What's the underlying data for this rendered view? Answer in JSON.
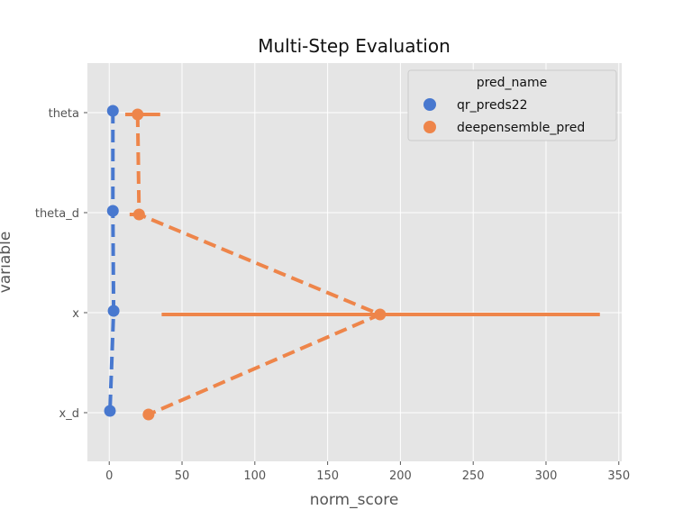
{
  "chart_data": {
    "type": "pointplot",
    "title": "Multi-Step Evaluation",
    "xlabel": "norm_score",
    "ylabel": "variable",
    "categories": [
      "theta",
      "theta_d",
      "x",
      "x_d"
    ],
    "xlim": [
      -15,
      352
    ],
    "xticks": [
      0,
      50,
      100,
      150,
      200,
      250,
      300,
      350
    ],
    "grid": true,
    "legend": {
      "title": "pred_name",
      "position": "top-right"
    },
    "series": [
      {
        "name": "qr_preds22",
        "color": "#4878cf",
        "values": [
          2.5,
          2.5,
          3.0,
          0.5
        ],
        "ci_low": [
          null,
          null,
          null,
          null
        ],
        "ci_high": [
          null,
          null,
          null,
          null
        ]
      },
      {
        "name": "deepensemble_pred",
        "color": "#ee854a",
        "values": [
          19.5,
          20.5,
          186.0,
          27.0
        ],
        "ci_low": [
          11.0,
          14.0,
          36.0,
          null
        ],
        "ci_high": [
          35.0,
          20.5,
          337.0,
          null
        ]
      }
    ]
  }
}
